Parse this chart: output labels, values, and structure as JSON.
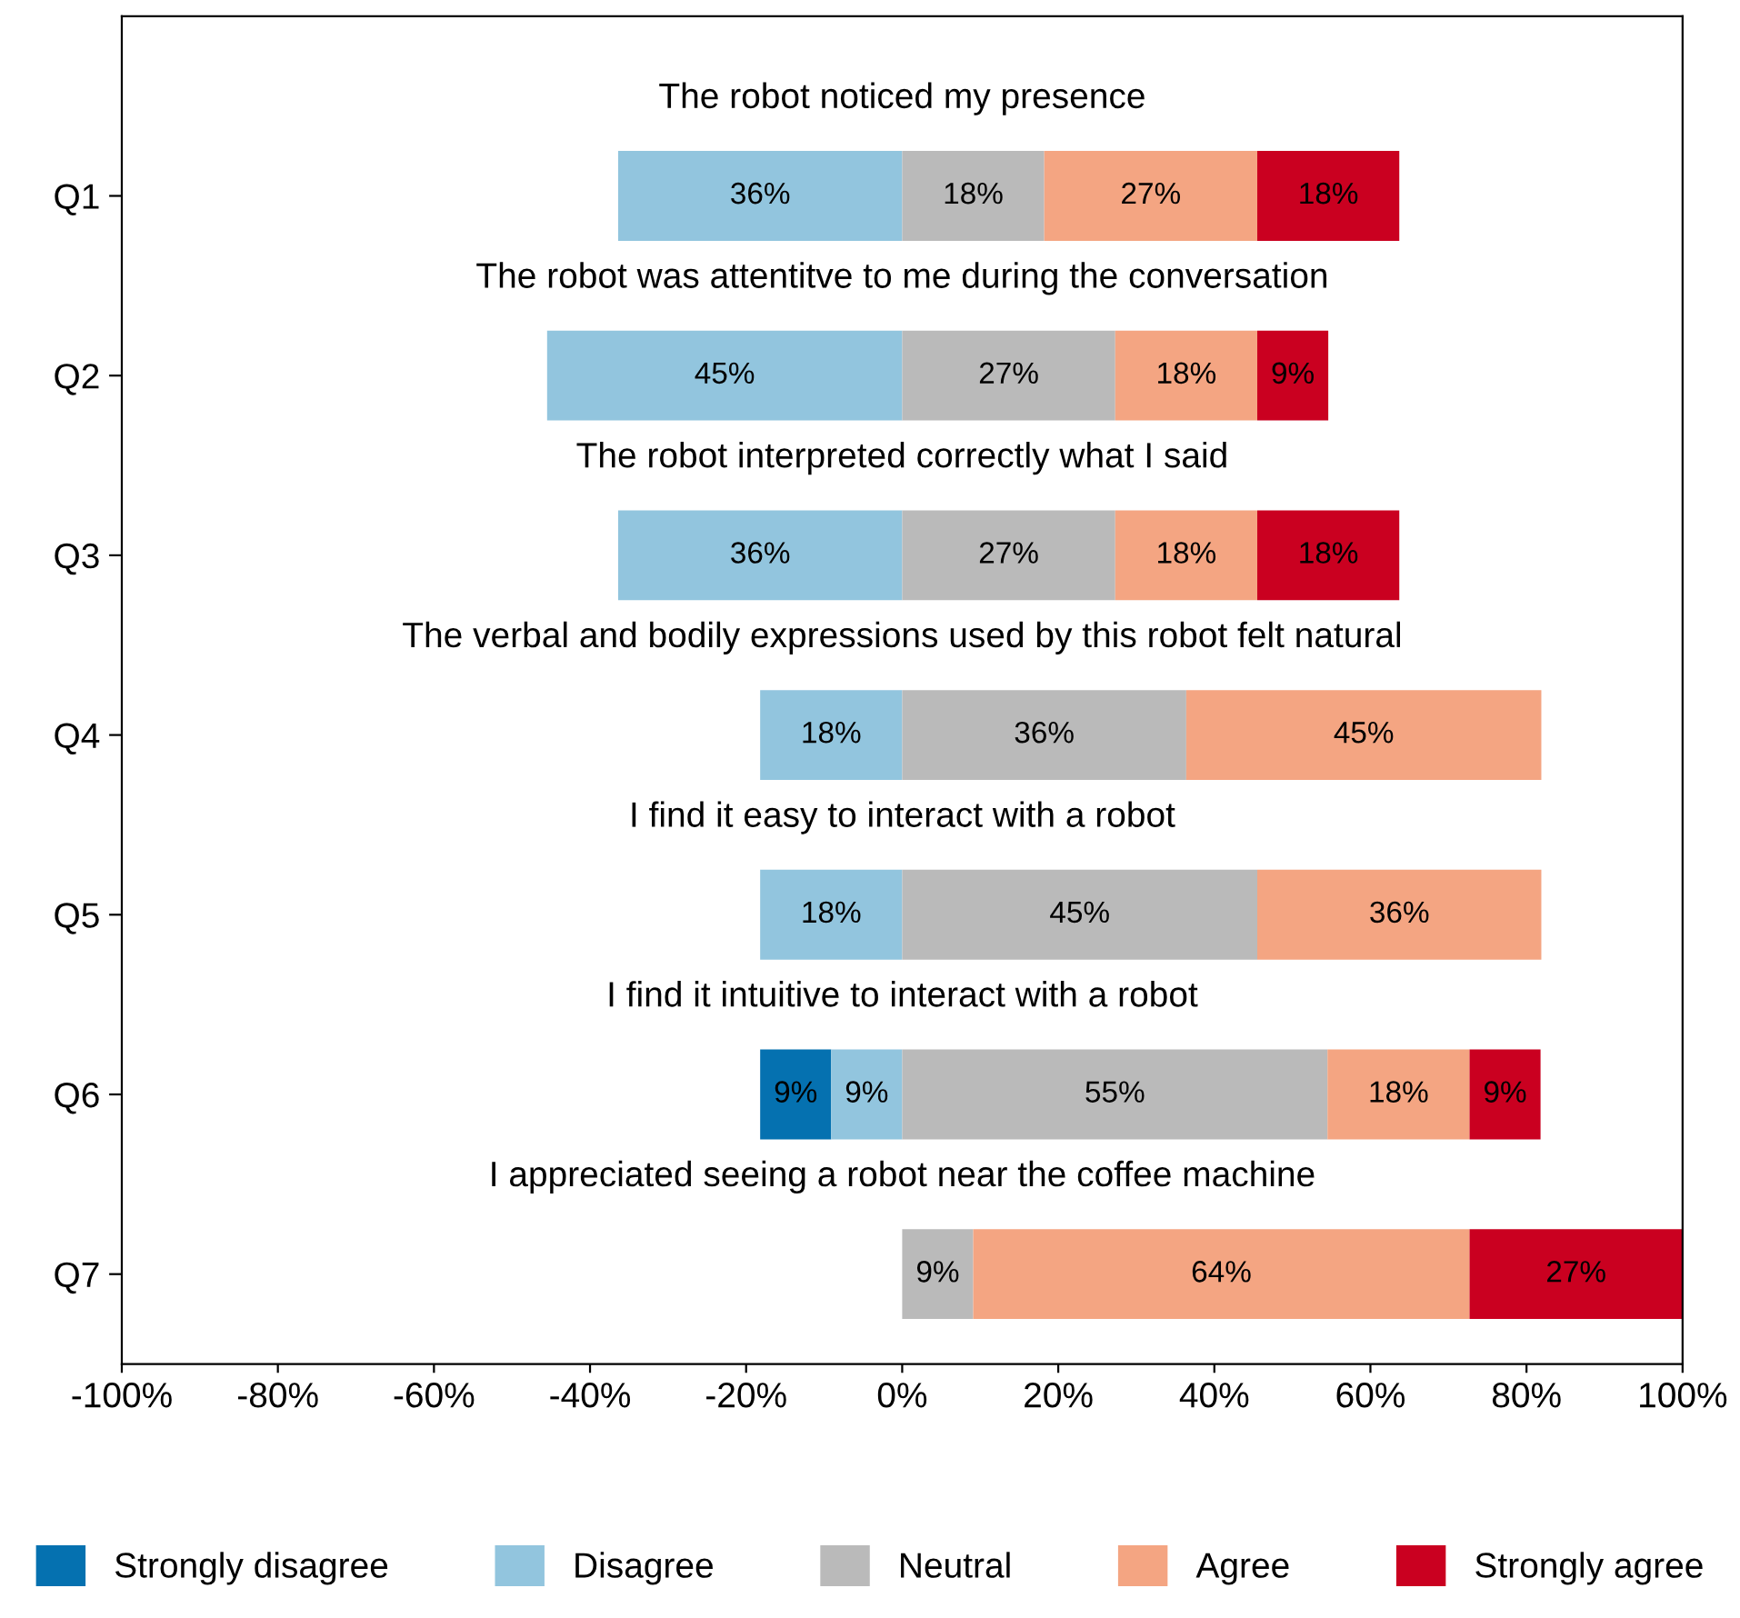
{
  "chart_data": {
    "type": "bar",
    "orientation": "horizontal",
    "categories": [
      "Q1",
      "Q2",
      "Q3",
      "Q4",
      "Q5",
      "Q6",
      "Q7"
    ],
    "series": [
      {
        "name": "Strongly disagree",
        "color": "#0571b0",
        "values": [
          null,
          null,
          null,
          null,
          null,
          -9.1,
          null
        ],
        "base": [
          null,
          null,
          null,
          null,
          null,
          -9.1,
          null
        ],
        "value_labels": [
          null,
          null,
          null,
          null,
          null,
          "9%",
          null
        ]
      },
      {
        "name": "Disagree",
        "color": "#92c5de",
        "values": [
          -36.4,
          -45.5,
          -36.4,
          -18.2,
          -18.2,
          -9.1,
          null
        ],
        "base": [
          0,
          0,
          0,
          0,
          0,
          0,
          null
        ],
        "value_labels": [
          "36%",
          "45%",
          "36%",
          "18%",
          "18%",
          "9%",
          null
        ]
      },
      {
        "name": "Neutral",
        "color": "#bababa",
        "values": [
          18.2,
          27.3,
          27.3,
          36.4,
          45.5,
          54.5,
          9.1
        ],
        "base": [
          0,
          0,
          0,
          0,
          0,
          0,
          0
        ],
        "value_labels": [
          "18%",
          "27%",
          "27%",
          "36%",
          "45%",
          "55%",
          "9%"
        ]
      },
      {
        "name": "Agree",
        "color": "#f4a582",
        "values": [
          27.3,
          18.2,
          18.2,
          45.5,
          36.4,
          18.2,
          63.6
        ],
        "base": [
          18.2,
          27.3,
          27.3,
          36.4,
          45.5,
          54.5,
          9.1
        ],
        "value_labels": [
          "27%",
          "18%",
          "18%",
          "45%",
          "36%",
          "18%",
          "64%"
        ]
      },
      {
        "name": "Strongly agree",
        "color": "#ca0020",
        "values": [
          18.2,
          9.1,
          18.2,
          null,
          null,
          9.1,
          27.3
        ],
        "base": [
          45.5,
          45.5,
          45.5,
          null,
          null,
          72.7,
          72.7
        ],
        "value_labels": [
          "18%",
          "9%",
          "18%",
          null,
          null,
          "9%",
          "27%"
        ]
      }
    ],
    "annotations": [
      "The robot noticed my presence",
      "The robot was attentitve to me during the conversation",
      "The robot interpreted correctly what I said",
      "The verbal and bodily expressions used by this robot felt natural",
      "I find it easy to interact with a robot",
      "I find it intuitive to interact with a robot",
      "I appreciated seeing a robot near the coffee machine"
    ],
    "xlim": [
      -100,
      100
    ],
    "xticks": [
      {
        "value": -100,
        "label": "-100%"
      },
      {
        "value": -80,
        "label": "-80%"
      },
      {
        "value": -60,
        "label": "-60%"
      },
      {
        "value": -40,
        "label": "-40%"
      },
      {
        "value": -20,
        "label": "-20%"
      },
      {
        "value": 0,
        "label": "0%"
      },
      {
        "value": 20,
        "label": "20%"
      },
      {
        "value": 40,
        "label": "40%"
      },
      {
        "value": 60,
        "label": "60%"
      },
      {
        "value": 80,
        "label": "80%"
      },
      {
        "value": 100,
        "label": "100%"
      }
    ],
    "grid": false,
    "legend": "bottom"
  }
}
